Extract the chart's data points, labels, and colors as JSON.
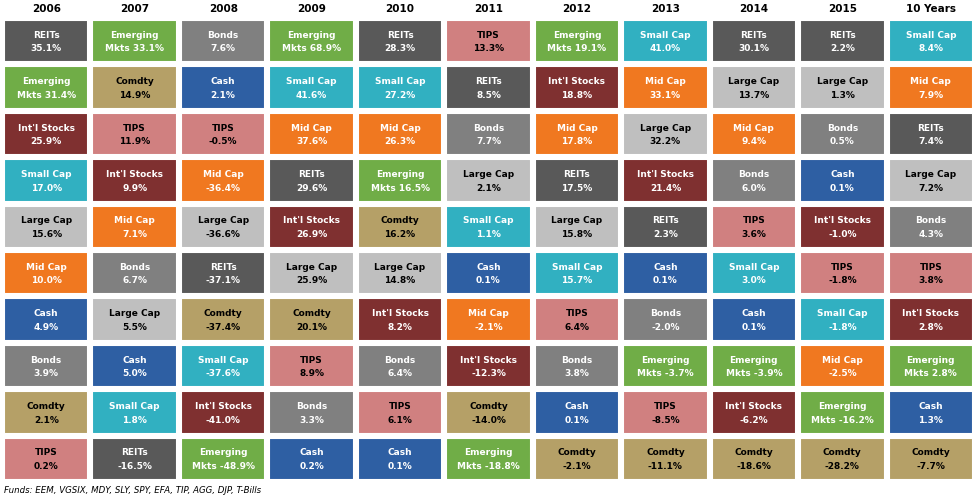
{
  "columns": [
    "2006",
    "2007",
    "2008",
    "2009",
    "2010",
    "2011",
    "2012",
    "2013",
    "2014",
    "2015",
    "10 Years"
  ],
  "footer": "Funds: EEM, VGSIX, MDY, SLY, SPY, EFA, TIP, AGG, DJP, T-Bills",
  "asset_colors": {
    "REITs": "#595959",
    "Emerging Mkts": "#70ad47",
    "Int'l Stocks": "#7f3030",
    "Small Cap": "#31b0c1",
    "Large Cap": "#bfbfbf",
    "Mid Cap": "#f07820",
    "Cash": "#2e5fa3",
    "Bonds": "#808080",
    "Comdty": "#b5a067",
    "TIPS": "#d08080"
  },
  "text_colors": {
    "REITs": "white",
    "Emerging Mkts": "white",
    "Int'l Stocks": "white",
    "Small Cap": "white",
    "Large Cap": "black",
    "Mid Cap": "white",
    "Cash": "white",
    "Bonds": "white",
    "Comdty": "black",
    "TIPS": "black"
  },
  "data": [
    [
      {
        "asset": "REITs",
        "line1": "REITs",
        "line2": "35.1%"
      },
      {
        "asset": "Emerging Mkts",
        "line1": "Emerging",
        "line2": "Mkts 33.1%"
      },
      {
        "asset": "Bonds",
        "line1": "Bonds",
        "line2": "7.6%"
      },
      {
        "asset": "Emerging Mkts",
        "line1": "Emerging",
        "line2": "Mkts 68.9%"
      },
      {
        "asset": "REITs",
        "line1": "REITs",
        "line2": "28.3%"
      },
      {
        "asset": "TIPS",
        "line1": "TIPS",
        "line2": "13.3%"
      },
      {
        "asset": "Emerging Mkts",
        "line1": "Emerging",
        "line2": "Mkts 19.1%"
      },
      {
        "asset": "Small Cap",
        "line1": "Small Cap",
        "line2": "41.0%"
      },
      {
        "asset": "REITs",
        "line1": "REITs",
        "line2": "30.1%"
      },
      {
        "asset": "REITs",
        "line1": "REITs",
        "line2": "2.2%"
      },
      {
        "asset": "Small Cap",
        "line1": "Small Cap",
        "line2": "8.4%"
      }
    ],
    [
      {
        "asset": "Emerging Mkts",
        "line1": "Emerging",
        "line2": "Mkts 31.4%"
      },
      {
        "asset": "Comdty",
        "line1": "Comdty",
        "line2": "14.9%"
      },
      {
        "asset": "Cash",
        "line1": "Cash",
        "line2": "2.1%"
      },
      {
        "asset": "Small Cap",
        "line1": "Small Cap",
        "line2": "41.6%"
      },
      {
        "asset": "Small Cap",
        "line1": "Small Cap",
        "line2": "27.2%"
      },
      {
        "asset": "REITs",
        "line1": "REITs",
        "line2": "8.5%"
      },
      {
        "asset": "Int'l Stocks",
        "line1": "Int'l Stocks",
        "line2": "18.8%"
      },
      {
        "asset": "Mid Cap",
        "line1": "Mid Cap",
        "line2": "33.1%"
      },
      {
        "asset": "Large Cap",
        "line1": "Large Cap",
        "line2": "13.7%"
      },
      {
        "asset": "Large Cap",
        "line1": "Large Cap",
        "line2": "1.3%"
      },
      {
        "asset": "Mid Cap",
        "line1": "Mid Cap",
        "line2": "7.9%"
      }
    ],
    [
      {
        "asset": "Int'l Stocks",
        "line1": "Int'l Stocks",
        "line2": "25.9%"
      },
      {
        "asset": "TIPS",
        "line1": "TIPS",
        "line2": "11.9%"
      },
      {
        "asset": "TIPS",
        "line1": "TIPS",
        "line2": "-0.5%"
      },
      {
        "asset": "Mid Cap",
        "line1": "Mid Cap",
        "line2": "37.6%"
      },
      {
        "asset": "Mid Cap",
        "line1": "Mid Cap",
        "line2": "26.3%"
      },
      {
        "asset": "Bonds",
        "line1": "Bonds",
        "line2": "7.7%"
      },
      {
        "asset": "Mid Cap",
        "line1": "Mid Cap",
        "line2": "17.8%"
      },
      {
        "asset": "Large Cap",
        "line1": "Large Cap",
        "line2": "32.2%"
      },
      {
        "asset": "Mid Cap",
        "line1": "Mid Cap",
        "line2": "9.4%"
      },
      {
        "asset": "Bonds",
        "line1": "Bonds",
        "line2": "0.5%"
      },
      {
        "asset": "REITs",
        "line1": "REITs",
        "line2": "7.4%"
      }
    ],
    [
      {
        "asset": "Small Cap",
        "line1": "Small Cap",
        "line2": "17.0%"
      },
      {
        "asset": "Int'l Stocks",
        "line1": "Int'l Stocks",
        "line2": "9.9%"
      },
      {
        "asset": "Mid Cap",
        "line1": "Mid Cap",
        "line2": "-36.4%"
      },
      {
        "asset": "REITs",
        "line1": "REITs",
        "line2": "29.6%"
      },
      {
        "asset": "Emerging Mkts",
        "line1": "Emerging",
        "line2": "Mkts 16.5%"
      },
      {
        "asset": "Large Cap",
        "line1": "Large Cap",
        "line2": "2.1%"
      },
      {
        "asset": "REITs",
        "line1": "REITs",
        "line2": "17.5%"
      },
      {
        "asset": "Int'l Stocks",
        "line1": "Int'l Stocks",
        "line2": "21.4%"
      },
      {
        "asset": "Bonds",
        "line1": "Bonds",
        "line2": "6.0%"
      },
      {
        "asset": "Cash",
        "line1": "Cash",
        "line2": "0.1%"
      },
      {
        "asset": "Large Cap",
        "line1": "Large Cap",
        "line2": "7.2%"
      }
    ],
    [
      {
        "asset": "Large Cap",
        "line1": "Large Cap",
        "line2": "15.6%"
      },
      {
        "asset": "Mid Cap",
        "line1": "Mid Cap",
        "line2": "7.1%"
      },
      {
        "asset": "Large Cap",
        "line1": "Large Cap",
        "line2": "-36.6%"
      },
      {
        "asset": "Int'l Stocks",
        "line1": "Int'l Stocks",
        "line2": "26.9%"
      },
      {
        "asset": "Comdty",
        "line1": "Comdty",
        "line2": "16.2%"
      },
      {
        "asset": "Small Cap",
        "line1": "Small Cap",
        "line2": "1.1%"
      },
      {
        "asset": "Large Cap",
        "line1": "Large Cap",
        "line2": "15.8%"
      },
      {
        "asset": "REITs",
        "line1": "REITs",
        "line2": "2.3%"
      },
      {
        "asset": "TIPS",
        "line1": "TIPS",
        "line2": "3.6%"
      },
      {
        "asset": "Int'l Stocks",
        "line1": "Int'l Stocks",
        "line2": "-1.0%"
      },
      {
        "asset": "Bonds",
        "line1": "Bonds",
        "line2": "4.3%"
      }
    ],
    [
      {
        "asset": "Mid Cap",
        "line1": "Mid Cap",
        "line2": "10.0%"
      },
      {
        "asset": "Bonds",
        "line1": "Bonds",
        "line2": "6.7%"
      },
      {
        "asset": "REITs",
        "line1": "REITs",
        "line2": "-37.1%"
      },
      {
        "asset": "Large Cap",
        "line1": "Large Cap",
        "line2": "25.9%"
      },
      {
        "asset": "Large Cap",
        "line1": "Large Cap",
        "line2": "14.8%"
      },
      {
        "asset": "Cash",
        "line1": "Cash",
        "line2": "0.1%"
      },
      {
        "asset": "Small Cap",
        "line1": "Small Cap",
        "line2": "15.7%"
      },
      {
        "asset": "Cash",
        "line1": "Cash",
        "line2": "0.1%"
      },
      {
        "asset": "Small Cap",
        "line1": "Small Cap",
        "line2": "3.0%"
      },
      {
        "asset": "TIPS",
        "line1": "TIPS",
        "line2": "-1.8%"
      },
      {
        "asset": "TIPS",
        "line1": "TIPS",
        "line2": "3.8%"
      }
    ],
    [
      {
        "asset": "Cash",
        "line1": "Cash",
        "line2": "4.9%"
      },
      {
        "asset": "Large Cap",
        "line1": "Large Cap",
        "line2": "5.5%"
      },
      {
        "asset": "Comdty",
        "line1": "Comdty",
        "line2": "-37.4%"
      },
      {
        "asset": "Comdty",
        "line1": "Comdty",
        "line2": "20.1%"
      },
      {
        "asset": "Int'l Stocks",
        "line1": "Int'l Stocks",
        "line2": "8.2%"
      },
      {
        "asset": "Mid Cap",
        "line1": "Mid Cap",
        "line2": "-2.1%"
      },
      {
        "asset": "TIPS",
        "line1": "TIPS",
        "line2": "6.4%"
      },
      {
        "asset": "Bonds",
        "line1": "Bonds",
        "line2": "-2.0%"
      },
      {
        "asset": "Cash",
        "line1": "Cash",
        "line2": "0.1%"
      },
      {
        "asset": "Small Cap",
        "line1": "Small Cap",
        "line2": "-1.8%"
      },
      {
        "asset": "Int'l Stocks",
        "line1": "Int'l Stocks",
        "line2": "2.8%"
      }
    ],
    [
      {
        "asset": "Bonds",
        "line1": "Bonds",
        "line2": "3.9%"
      },
      {
        "asset": "Cash",
        "line1": "Cash",
        "line2": "5.0%"
      },
      {
        "asset": "Small Cap",
        "line1": "Small Cap",
        "line2": "-37.6%"
      },
      {
        "asset": "TIPS",
        "line1": "TIPS",
        "line2": "8.9%"
      },
      {
        "asset": "Bonds",
        "line1": "Bonds",
        "line2": "6.4%"
      },
      {
        "asset": "Int'l Stocks",
        "line1": "Int'l Stocks",
        "line2": "-12.3%"
      },
      {
        "asset": "Bonds",
        "line1": "Bonds",
        "line2": "3.8%"
      },
      {
        "asset": "Emerging Mkts",
        "line1": "Emerging",
        "line2": "Mkts -3.7%"
      },
      {
        "asset": "Emerging Mkts",
        "line1": "Emerging",
        "line2": "Mkts -3.9%"
      },
      {
        "asset": "Mid Cap",
        "line1": "Mid Cap",
        "line2": "-2.5%"
      },
      {
        "asset": "Emerging Mkts",
        "line1": "Emerging",
        "line2": "Mkts 2.8%"
      }
    ],
    [
      {
        "asset": "Comdty",
        "line1": "Comdty",
        "line2": "2.1%"
      },
      {
        "asset": "Small Cap",
        "line1": "Small Cap",
        "line2": "1.8%"
      },
      {
        "asset": "Int'l Stocks",
        "line1": "Int'l Stocks",
        "line2": "-41.0%"
      },
      {
        "asset": "Bonds",
        "line1": "Bonds",
        "line2": "3.3%"
      },
      {
        "asset": "TIPS",
        "line1": "TIPS",
        "line2": "6.1%"
      },
      {
        "asset": "Comdty",
        "line1": "Comdty",
        "line2": "-14.0%"
      },
      {
        "asset": "Cash",
        "line1": "Cash",
        "line2": "0.1%"
      },
      {
        "asset": "TIPS",
        "line1": "TIPS",
        "line2": "-8.5%"
      },
      {
        "asset": "Int'l Stocks",
        "line1": "Int'l Stocks",
        "line2": "-6.2%"
      },
      {
        "asset": "Emerging Mkts",
        "line1": "Emerging",
        "line2": "Mkts -16.2%"
      },
      {
        "asset": "Cash",
        "line1": "Cash",
        "line2": "1.3%"
      }
    ],
    [
      {
        "asset": "TIPS",
        "line1": "TIPS",
        "line2": "0.2%"
      },
      {
        "asset": "REITs",
        "line1": "REITs",
        "line2": "-16.5%"
      },
      {
        "asset": "Emerging Mkts",
        "line1": "Emerging",
        "line2": "Mkts -48.9%"
      },
      {
        "asset": "Cash",
        "line1": "Cash",
        "line2": "0.2%"
      },
      {
        "asset": "Cash",
        "line1": "Cash",
        "line2": "0.1%"
      },
      {
        "asset": "Emerging Mkts",
        "line1": "Emerging",
        "line2": "Mkts -18.8%"
      },
      {
        "asset": "Comdty",
        "line1": "Comdty",
        "line2": "-2.1%"
      },
      {
        "asset": "Comdty",
        "line1": "Comdty",
        "line2": "-11.1%"
      },
      {
        "asset": "Comdty",
        "line1": "Comdty",
        "line2": "-18.6%"
      },
      {
        "asset": "Comdty",
        "line1": "Comdty",
        "line2": "-28.2%"
      },
      {
        "asset": "Comdty",
        "line1": "Comdty",
        "line2": "-7.7%"
      }
    ]
  ]
}
